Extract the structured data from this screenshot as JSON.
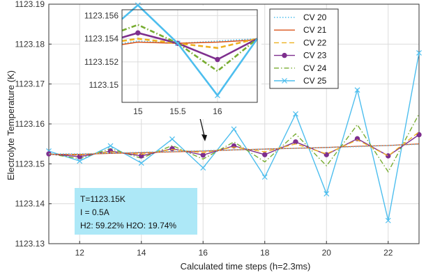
{
  "chart_data": {
    "type": "line",
    "xlabel": "Calculated time steps (h=2.3ms)",
    "ylabel": "Electrolyte Temperature (K)",
    "xlim": [
      11,
      23
    ],
    "ylim": [
      1123.13,
      1123.19
    ],
    "xticks": [
      12,
      14,
      16,
      18,
      20,
      22
    ],
    "yticks": [
      1123.13,
      1123.14,
      1123.15,
      1123.16,
      1123.17,
      1123.18,
      1123.19
    ],
    "grid": true,
    "x": [
      11,
      12,
      13,
      14,
      15,
      16,
      17,
      18,
      19,
      20,
      21,
      22,
      23
    ],
    "series": [
      {
        "name": "CV 20",
        "color": "#4DBEEE",
        "dash": "dotted",
        "marker": "none",
        "values": [
          1123.1525,
          1123.1525,
          1123.1527,
          1123.1529,
          1123.1531,
          1123.1533,
          1123.1535,
          1123.1537,
          1123.1539,
          1123.1541,
          1123.1543,
          1123.1546,
          1123.1549
        ]
      },
      {
        "name": "CV 21",
        "color": "#D95319",
        "dash": "solid",
        "marker": "none",
        "values": [
          1123.1524,
          1123.1524,
          1123.1526,
          1123.1528,
          1123.153,
          1123.1532,
          1123.1535,
          1123.1537,
          1123.1539,
          1123.1541,
          1123.1544,
          1123.1546,
          1123.155
        ]
      },
      {
        "name": "CV 22",
        "color": "#EDB120",
        "dash": "dashed",
        "marker": "none",
        "values": [
          1123.1525,
          1123.1522,
          1123.153,
          1123.1524,
          1123.1536,
          1123.1528,
          1123.1542,
          1123.153,
          1123.155,
          1123.1525,
          1123.156,
          1123.152,
          1123.158
        ]
      },
      {
        "name": "CV 23",
        "color": "#7E2F8E",
        "dash": "solid",
        "marker": "circle",
        "values": [
          1123.1525,
          1123.1518,
          1123.1532,
          1123.152,
          1123.1538,
          1123.1522,
          1123.1545,
          1123.1523,
          1123.1555,
          1123.1523,
          1123.1563,
          1123.152,
          1123.1573
        ]
      },
      {
        "name": "CV 24",
        "color": "#77AC30",
        "dash": "dashdot",
        "marker": "none",
        "values": [
          1123.1525,
          1123.1513,
          1123.1538,
          1123.1514,
          1123.1546,
          1123.1512,
          1123.1555,
          1123.1505,
          1123.1575,
          1123.1495,
          1123.1598,
          1123.148,
          1123.1625
        ]
      },
      {
        "name": "CV 25",
        "color": "#4DBEEE",
        "dash": "solid",
        "marker": "x",
        "values": [
          1123.1532,
          1123.1507,
          1123.1545,
          1123.1502,
          1123.1562,
          1123.149,
          1123.1587,
          1123.1467,
          1123.1625,
          1123.1425,
          1123.1685,
          1123.1358,
          1123.1778
        ]
      }
    ],
    "inset": {
      "xlim": [
        14.8,
        16.5
      ],
      "ylim": [
        1123.1485,
        1123.1565
      ],
      "xticks": [
        15,
        15.5,
        16
      ],
      "yticks": [
        1123.15,
        1123.152,
        1123.154,
        1123.156
      ],
      "x": [
        14.8,
        15,
        15.5,
        16,
        16.5
      ],
      "series": [
        {
          "name": "CV 20",
          "values": [
            1123.1536,
            1123.1538,
            1123.1536,
            1123.1538,
            1123.154
          ]
        },
        {
          "name": "CV 21",
          "values": [
            1123.1535,
            1123.1537,
            1123.1536,
            1123.1537,
            1123.1539
          ]
        },
        {
          "name": "CV 22",
          "values": [
            1123.1538,
            1123.154,
            1123.1536,
            1123.1532,
            1123.154
          ]
        },
        {
          "name": "CV 23",
          "values": [
            1123.1541,
            1123.1545,
            1123.1536,
            1123.1522,
            1123.154
          ]
        },
        {
          "name": "CV 24",
          "values": [
            1123.1547,
            1123.1552,
            1123.1536,
            1123.1512,
            1123.154
          ]
        },
        {
          "name": "CV 25",
          "values": [
            1123.1557,
            1123.1569,
            1123.1536,
            1123.1491,
            1123.154
          ]
        }
      ]
    },
    "annotation": {
      "lines": [
        "T=1123.15K",
        "I = 0.5A",
        "H2: 59.22% H2O: 19.74%"
      ],
      "background": "#ADE8F7"
    },
    "legend_placement": "top-right"
  }
}
